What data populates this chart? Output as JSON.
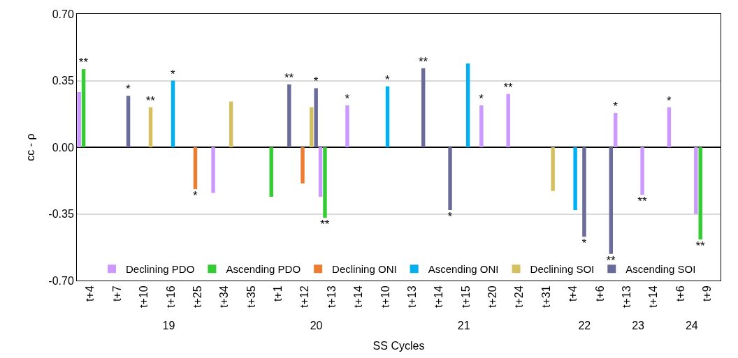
{
  "chart_data": {
    "type": "bar",
    "categories": [
      "t+4",
      "t+7",
      "t+10",
      "t+16",
      "t+25",
      "t+34",
      "t+35",
      "t+1",
      "t+12",
      "t+13",
      "t+14",
      "t+10",
      "t+13",
      "t+14",
      "t+15",
      "t+20",
      "t+24",
      "t+31",
      "t+4",
      "t+6",
      "t+13",
      "t+14",
      "t+6",
      "t+9"
    ],
    "annotations": [
      "19",
      "20",
      "21",
      "22",
      "23",
      "24"
    ],
    "xlabel": "SS Cycles",
    "ylabel": "cc - ρ",
    "ylim": [
      -0.7,
      0.7
    ],
    "yticks": [
      {
        "value": -0.7,
        "label": "-0.70"
      },
      {
        "value": -0.35,
        "label": "-0.35"
      },
      {
        "value": 0,
        "label": "0.00"
      },
      {
        "value": 0.35,
        "label": "0.35"
      },
      {
        "value": 0.7,
        "label": "0.70"
      }
    ],
    "grid": "y",
    "legend": "bottom",
    "series": [
      {
        "name": "Declining PDO",
        "color": "#cc99ff",
        "values": [
          0.29,
          null,
          null,
          null,
          null,
          -0.24,
          null,
          null,
          null,
          -0.26,
          0.22,
          null,
          null,
          null,
          null,
          0.22,
          0.28,
          null,
          null,
          null,
          0.18,
          -0.25,
          0.21,
          -0.35
        ],
        "value_labels": [
          null,
          null,
          null,
          null,
          null,
          null,
          null,
          null,
          null,
          null,
          "*",
          null,
          null,
          null,
          null,
          "*",
          "**",
          null,
          null,
          null,
          "*",
          "**",
          "*",
          null
        ]
      },
      {
        "name": "Ascending PDO",
        "color": "#33cc33",
        "values": [
          0.41,
          null,
          null,
          null,
          null,
          null,
          null,
          -0.26,
          null,
          -0.37,
          null,
          null,
          null,
          null,
          null,
          null,
          null,
          null,
          null,
          null,
          null,
          null,
          null,
          -0.485
        ],
        "value_labels": [
          "**",
          null,
          null,
          null,
          null,
          null,
          null,
          null,
          null,
          "**",
          null,
          null,
          null,
          null,
          null,
          null,
          null,
          null,
          null,
          null,
          null,
          null,
          null,
          "**"
        ]
      },
      {
        "name": "Declining ONI",
        "color": "#ed7d31",
        "values": [
          null,
          null,
          null,
          null,
          -0.22,
          null,
          null,
          null,
          -0.19,
          null,
          null,
          null,
          null,
          null,
          null,
          null,
          null,
          null,
          null,
          null,
          null,
          null,
          null,
          null
        ],
        "value_labels": [
          null,
          null,
          null,
          null,
          "*",
          null,
          null,
          null,
          null,
          null,
          null,
          null,
          null,
          null,
          null,
          null,
          null,
          null,
          null,
          null,
          null,
          null,
          null,
          null
        ]
      },
      {
        "name": "Ascending ONI",
        "color": "#00b0f0",
        "values": [
          null,
          null,
          null,
          0.35,
          null,
          null,
          null,
          null,
          null,
          null,
          null,
          0.32,
          null,
          null,
          0.44,
          null,
          null,
          null,
          -0.33,
          null,
          null,
          null,
          null,
          null
        ],
        "value_labels": [
          null,
          null,
          null,
          "*",
          null,
          null,
          null,
          null,
          null,
          null,
          null,
          "*",
          null,
          null,
          null,
          null,
          null,
          null,
          null,
          null,
          null,
          null,
          null,
          null
        ]
      },
      {
        "name": "Declining SOI",
        "color": "#d4c060",
        "values": [
          null,
          null,
          0.21,
          null,
          null,
          0.24,
          null,
          null,
          0.21,
          null,
          null,
          null,
          null,
          null,
          null,
          null,
          null,
          -0.23,
          null,
          null,
          null,
          null,
          null,
          null
        ],
        "value_labels": [
          null,
          null,
          "**",
          null,
          null,
          null,
          null,
          null,
          null,
          null,
          null,
          null,
          null,
          null,
          null,
          null,
          null,
          null,
          null,
          null,
          null,
          null,
          null,
          null
        ]
      },
      {
        "name": "Ascending SOI",
        "color": "#6b6b9b",
        "values": [
          null,
          0.27,
          null,
          null,
          null,
          null,
          null,
          0.33,
          0.31,
          null,
          null,
          null,
          0.415,
          -0.33,
          null,
          null,
          null,
          null,
          -0.47,
          -0.56,
          null,
          null,
          null,
          null
        ],
        "value_labels": [
          null,
          "*",
          null,
          null,
          null,
          null,
          null,
          "**",
          "*",
          null,
          null,
          null,
          "**",
          "*",
          null,
          null,
          null,
          null,
          "*",
          "**",
          null,
          null,
          null,
          null
        ]
      }
    ]
  }
}
